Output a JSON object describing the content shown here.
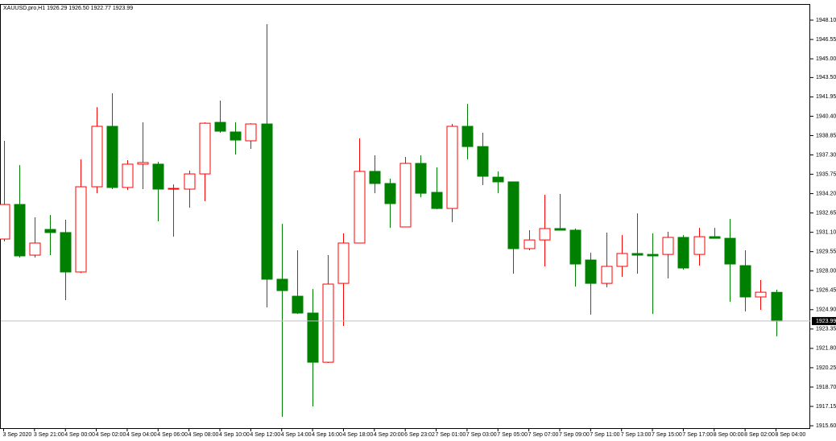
{
  "chart_data": {
    "type": "candlestick",
    "title": "XAUUSD,pro,H1  1926.29 1926.50 1922.77 1923.99",
    "categories": [
      "3 Sep 2020",
      null,
      "3 Sep 21:00",
      null,
      "4 Sep 00:00",
      null,
      "4 Sep 02:00",
      null,
      "4 Sep 04:00",
      null,
      "4 Sep 06:00",
      null,
      "4 Sep 08:00",
      null,
      "4 Sep 10:00",
      null,
      "4 Sep 12:00",
      null,
      "4 Sep 14:00",
      null,
      "4 Sep 16:00",
      null,
      "4 Sep 18:00",
      null,
      "4 Sep 20:00",
      null,
      "6 Sep 23:02",
      null,
      "7 Sep 01:00",
      null,
      "7 Sep 03:00",
      null,
      "7 Sep 05:00",
      null,
      "7 Sep 07:00",
      null,
      "7 Sep 09:00",
      null,
      "7 Sep 11:00",
      null,
      "7 Sep 13:00",
      null,
      "7 Sep 15:00",
      null,
      "7 Sep 17:00",
      null,
      "8 Sep 00:00",
      null,
      "8 Sep 02:00",
      null,
      "8 Sep 04:00"
    ],
    "open": [
      1930.56,
      1933.33,
      1929.27,
      1931.33,
      1931.08,
      1927.92,
      1934.75,
      1939.59,
      1934.69,
      1936.56,
      1936.56,
      1934.56,
      1934.56,
      1935.78,
      1939.91,
      1939.14,
      1938.43,
      1939.78,
      1927.34,
      1925.98,
      1924.63,
      1920.69,
      1927.01,
      1930.24,
      1935.98,
      1935.01,
      1931.53,
      1936.62,
      1934.3,
      1933.01,
      1939.59,
      1937.97,
      1935.52,
      1935.14,
      1929.79,
      1930.49,
      1931.4,
      1931.27,
      1928.88,
      1927.01,
      1928.37,
      1929.4,
      1929.33,
      1929.33,
      1930.69,
      1929.33,
      1930.75,
      1930.62,
      1928.43,
      1925.92,
      1926.29
    ],
    "high": [
      1938.43,
      1936.49,
      1932.3,
      1932.49,
      1932.11,
      1936.94,
      1941.13,
      1942.23,
      1936.88,
      1939.91,
      1936.75,
      1934.94,
      1936.04,
      1939.91,
      1941.65,
      1939.91,
      1939.84,
      1947.78,
      1931.78,
      1929.66,
      1926.56,
      1929.27,
      1931.01,
      1938.62,
      1937.27,
      1935.4,
      1937.14,
      1937.27,
      1936.3,
      1939.78,
      1941.39,
      1939.07,
      1935.98,
      1935.14,
      1931.27,
      1934.11,
      1934.17,
      1931.4,
      1929.46,
      1931.08,
      1930.88,
      1932.62,
      1931.01,
      1931.14,
      1930.88,
      1931.46,
      1931.46,
      1932.17,
      1929.66,
      1927.27,
      1926.5
    ],
    "low": [
      1930.37,
      1929.08,
      1929.08,
      1929.27,
      1925.66,
      1927.85,
      1934.23,
      1934.56,
      1934.49,
      1934.56,
      1931.98,
      1930.75,
      1933.07,
      1933.59,
      1939.07,
      1937.33,
      1937.78,
      1925.08,
      1916.31,
      1924.56,
      1917.15,
      1920.63,
      1923.6,
      1930.24,
      1934.23,
      1931.46,
      1931.53,
      1933.91,
      1932.95,
      1931.91,
      1936.94,
      1934.88,
      1934.23,
      1927.79,
      1929.66,
      1928.37,
      1931.27,
      1926.76,
      1924.5,
      1926.69,
      1927.53,
      1927.79,
      1924.56,
      1927.4,
      1928.11,
      1928.43,
      1930.62,
      1925.53,
      1924.76,
      1924.89,
      1922.77
    ],
    "close": [
      1933.33,
      1929.21,
      1930.24,
      1931.08,
      1927.92,
      1934.75,
      1939.59,
      1934.69,
      1936.56,
      1936.69,
      1934.56,
      1934.62,
      1935.78,
      1939.84,
      1939.2,
      1938.49,
      1939.78,
      1927.34,
      1926.43,
      1924.63,
      1920.69,
      1926.95,
      1930.24,
      1935.98,
      1935.01,
      1933.4,
      1936.62,
      1934.23,
      1933.01,
      1939.59,
      1937.97,
      1935.59,
      1935.14,
      1929.79,
      1930.49,
      1931.4,
      1931.27,
      1928.56,
      1927.01,
      1928.37,
      1929.4,
      1929.27,
      1929.21,
      1930.69,
      1928.24,
      1930.75,
      1930.62,
      1928.56,
      1925.92,
      1926.3,
      1923.99
    ],
    "up_color": "#ff0000",
    "down_color": "#008000",
    "current_price": 1923.99,
    "ylim": [
      1915.41,
      1949.39
    ],
    "yticks": [
      {
        "value": 1948.1,
        "label": "1948.10"
      },
      1946.55,
      {
        "value": 1945.0,
        "label": "1945.00"
      },
      {
        "value": 1943.5,
        "label": "1943.50"
      },
      1941.95,
      {
        "value": 1940.4,
        "label": "1940.40"
      },
      1938.85,
      {
        "value": 1937.3,
        "label": "1937.30"
      },
      1935.75,
      {
        "value": 1934.2,
        "label": "1934.20"
      },
      1932.65,
      {
        "value": 1931.1,
        "label": "1931.10"
      },
      1929.55,
      {
        "value": 1928.0,
        "label": "1928.00"
      },
      1926.45,
      {
        "value": 1924.9,
        "label": "1924.90"
      },
      1923.35,
      {
        "value": 1921.8,
        "label": "1921.80"
      },
      1920.25,
      {
        "value": 1918.7,
        "label": "1918.70"
      },
      1917.15,
      {
        "value": 1915.6,
        "label": "1915.60"
      }
    ]
  }
}
